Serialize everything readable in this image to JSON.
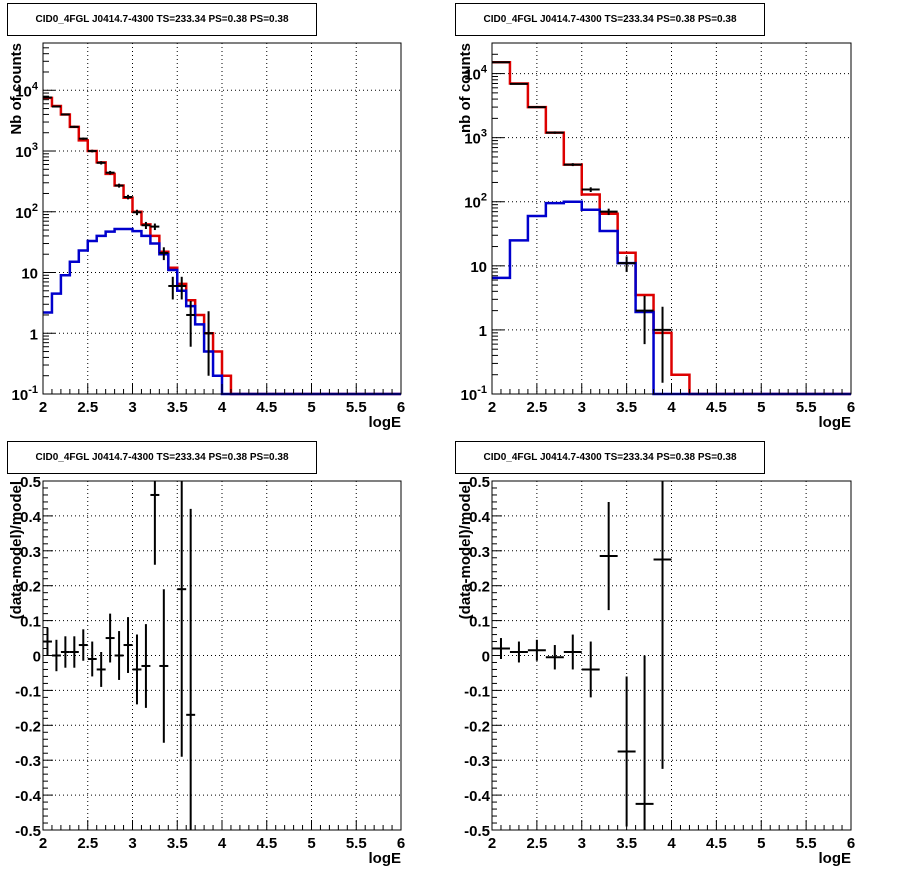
{
  "chart_data": [
    {
      "type": "step-histogram",
      "title": "CID0_4FGL J0414.7-4300 TS=233.34 PS=0.38 PS=0.38",
      "xlabel": "logE",
      "ylabel": "Nb of counts",
      "xlim": [
        2,
        6
      ],
      "ylim": [
        0.1,
        60000
      ],
      "yscale": "log",
      "grid": true,
      "xticks": [
        "2",
        "2.5",
        "3",
        "3.5",
        "4",
        "4.5",
        "5",
        "5.5",
        "6"
      ],
      "yticks": [
        "10^-1",
        "1",
        "10",
        "10^2",
        "10^3",
        "10^4"
      ],
      "bin_edges": [
        2.0,
        2.1,
        2.2,
        2.3,
        2.4,
        2.5,
        2.6,
        2.7,
        2.8,
        2.9,
        3.0,
        3.1,
        3.2,
        3.3,
        3.4,
        3.5,
        3.6,
        3.7,
        3.8,
        3.9,
        4.0,
        4.1,
        4.2,
        4.3,
        4.4,
        4.5,
        4.6,
        4.7,
        4.8,
        4.9,
        5.0,
        5.1,
        5.2,
        5.3,
        5.4,
        5.5,
        5.6,
        5.7,
        5.8,
        5.9,
        6.0
      ],
      "series": [
        {
          "color": "#dd0000",
          "values": [
            7500,
            5500,
            4000,
            2500,
            1500,
            1000,
            650,
            420,
            270,
            170,
            100,
            62,
            40,
            22,
            12,
            6.5,
            3.5,
            2.0,
            1.0,
            0.5,
            0.2,
            0.1,
            0.1,
            0.1,
            0.1,
            0.1,
            0.1,
            0.1,
            0.1,
            0.1,
            0.1,
            0.1,
            0.1,
            0.1,
            0.1,
            0.1,
            0.1,
            0.1,
            0.1,
            0.1
          ]
        },
        {
          "color": "#0000cc",
          "values": [
            2.2,
            4.5,
            9,
            15,
            23,
            33,
            40,
            47,
            52,
            52,
            48,
            40,
            30,
            20,
            11,
            5,
            2.8,
            1.4,
            0.5,
            0.2,
            0.1,
            0.1,
            0.1,
            0.1,
            0.1,
            0.1,
            0.1,
            0.1,
            0.1,
            0.1,
            0.1,
            0.1,
            0.1,
            0.1,
            0.1,
            0.1,
            0.1,
            0.1,
            0.1,
            0.1
          ]
        }
      ],
      "points": [
        {
          "x": 2.05,
          "y": 7600,
          "lo": 7400,
          "hi": 7800
        },
        {
          "x": 2.15,
          "y": 5400,
          "lo": 5250,
          "hi": 5550
        },
        {
          "x": 2.25,
          "y": 4000,
          "lo": 3880,
          "hi": 4120
        },
        {
          "x": 2.35,
          "y": 2500,
          "lo": 2400,
          "hi": 2600
        },
        {
          "x": 2.45,
          "y": 1600,
          "lo": 1530,
          "hi": 1670
        },
        {
          "x": 2.55,
          "y": 1000,
          "lo": 950,
          "hi": 1050
        },
        {
          "x": 2.65,
          "y": 640,
          "lo": 600,
          "hi": 680
        },
        {
          "x": 2.75,
          "y": 440,
          "lo": 410,
          "hi": 470
        },
        {
          "x": 2.85,
          "y": 270,
          "lo": 250,
          "hi": 290
        },
        {
          "x": 2.95,
          "y": 175,
          "lo": 160,
          "hi": 190
        },
        {
          "x": 3.05,
          "y": 98,
          "lo": 88,
          "hi": 108
        },
        {
          "x": 3.15,
          "y": 60,
          "lo": 52,
          "hi": 68
        },
        {
          "x": 3.25,
          "y": 57,
          "lo": 50,
          "hi": 64
        },
        {
          "x": 3.35,
          "y": 21,
          "lo": 16,
          "hi": 26
        },
        {
          "x": 3.45,
          "y": 6,
          "lo": 3.6,
          "hi": 8.5
        },
        {
          "x": 3.55,
          "y": 6,
          "lo": 3.6,
          "hi": 8.5
        },
        {
          "x": 3.65,
          "y": 2,
          "lo": 0.6,
          "hi": 3.4
        },
        {
          "x": 3.85,
          "y": 1,
          "lo": 0.2,
          "hi": 2.3
        }
      ]
    },
    {
      "type": "step-histogram",
      "title": "CID0_4FGL J0414.7-4300 TS=233.34 PS=0.38 PS=0.38",
      "xlabel": "logE",
      "ylabel": "nb of counts",
      "xlim": [
        2,
        6
      ],
      "ylim": [
        0.1,
        30000
      ],
      "yscale": "log",
      "grid": true,
      "xticks": [
        "2",
        "2.5",
        "3",
        "3.5",
        "4",
        "4.5",
        "5",
        "5.5",
        "6"
      ],
      "yticks": [
        "10^-1",
        "1",
        "10",
        "10^2",
        "10^3",
        "10^4"
      ],
      "bin_edges": [
        2.0,
        2.2,
        2.4,
        2.6,
        2.8,
        3.0,
        3.2,
        3.4,
        3.6,
        3.8,
        4.0,
        4.2,
        4.4,
        4.6,
        4.8,
        5.0,
        5.2,
        5.4,
        5.6,
        5.8,
        6.0
      ],
      "series": [
        {
          "color": "#dd0000",
          "values": [
            15000,
            7000,
            3000,
            1200,
            380,
            130,
            65,
            16,
            3.5,
            0.9,
            0.2,
            0.1,
            0.1,
            0.1,
            0.1,
            0.1,
            0.1,
            0.1,
            0.1,
            0.1
          ]
        },
        {
          "color": "#0000cc",
          "values": [
            6.5,
            25,
            60,
            95,
            100,
            75,
            35,
            11,
            1.9,
            0.1,
            0.1,
            0.1,
            0.1,
            0.1,
            0.1,
            0.1,
            0.1,
            0.1,
            0.1,
            0.1
          ]
        }
      ],
      "points": [
        {
          "x": 2.1,
          "y": 15000,
          "lo": 14800,
          "hi": 15200
        },
        {
          "x": 2.3,
          "y": 6900,
          "lo": 6750,
          "hi": 7050
        },
        {
          "x": 2.5,
          "y": 3000,
          "lo": 2900,
          "hi": 3100
        },
        {
          "x": 2.7,
          "y": 1200,
          "lo": 1150,
          "hi": 1250
        },
        {
          "x": 2.9,
          "y": 380,
          "lo": 360,
          "hi": 400
        },
        {
          "x": 3.1,
          "y": 155,
          "lo": 142,
          "hi": 168
        },
        {
          "x": 3.3,
          "y": 70,
          "lo": 62,
          "hi": 78
        },
        {
          "x": 3.5,
          "y": 11,
          "lo": 8,
          "hi": 14
        },
        {
          "x": 3.7,
          "y": 2,
          "lo": 0.6,
          "hi": 3.4
        },
        {
          "x": 3.9,
          "y": 1,
          "lo": 0.15,
          "hi": 2.3
        }
      ]
    },
    {
      "type": "errorbar",
      "title": "CID0_4FGL J0414.7-4300 TS=233.34 PS=0.38 PS=0.38",
      "xlabel": "logE",
      "ylabel": "(data-model)/model",
      "xlim": [
        2,
        6
      ],
      "ylim": [
        -0.5,
        0.5
      ],
      "grid": true,
      "xticks": [
        "2",
        "2.5",
        "3",
        "3.5",
        "4",
        "4.5",
        "5",
        "5.5",
        "6"
      ],
      "yticks": [
        "-0.5",
        "-0.4",
        "-0.3",
        "-0.2",
        "-0.1",
        "0",
        "0.1",
        "0.2",
        "0.3",
        "0.4",
        "0.5"
      ],
      "points": [
        {
          "x": 2.05,
          "y": 0.04,
          "err": 0.04
        },
        {
          "x": 2.15,
          "y": 0.0,
          "err": 0.045
        },
        {
          "x": 2.25,
          "y": 0.01,
          "err": 0.045
        },
        {
          "x": 2.35,
          "y": 0.01,
          "err": 0.045
        },
        {
          "x": 2.45,
          "y": 0.03,
          "err": 0.045
        },
        {
          "x": 2.55,
          "y": -0.01,
          "err": 0.05
        },
        {
          "x": 2.65,
          "y": -0.04,
          "err": 0.05
        },
        {
          "x": 2.75,
          "y": 0.05,
          "err": 0.07
        },
        {
          "x": 2.85,
          "y": 0.0,
          "err": 0.07
        },
        {
          "x": 2.95,
          "y": 0.03,
          "err": 0.08
        },
        {
          "x": 3.05,
          "y": -0.04,
          "err": 0.1
        },
        {
          "x": 3.15,
          "y": -0.03,
          "err": 0.12
        },
        {
          "x": 3.25,
          "y": 0.46,
          "err": 0.2
        },
        {
          "x": 3.35,
          "y": -0.03,
          "err": 0.22
        },
        {
          "x": 3.55,
          "y": 0.19,
          "err": 0.48
        },
        {
          "x": 3.65,
          "y": -0.17,
          "err": 0.59
        }
      ]
    },
    {
      "type": "errorbar",
      "title": "CID0_4FGL J0414.7-4300 TS=233.34 PS=0.38 PS=0.38",
      "xlabel": "logE",
      "ylabel": "(data-model)/model",
      "xlim": [
        2,
        6
      ],
      "ylim": [
        -0.5,
        0.5
      ],
      "grid": true,
      "xticks": [
        "2",
        "2.5",
        "3",
        "3.5",
        "4",
        "4.5",
        "5",
        "5.5",
        "6"
      ],
      "yticks": [
        "-0.5",
        "-0.4",
        "-0.3",
        "-0.2",
        "-0.1",
        "0",
        "0.1",
        "0.2",
        "0.3",
        "0.4",
        "0.5"
      ],
      "points": [
        {
          "x": 2.1,
          "y": 0.02,
          "err": 0.03
        },
        {
          "x": 2.3,
          "y": 0.01,
          "err": 0.03
        },
        {
          "x": 2.5,
          "y": 0.015,
          "err": 0.03
        },
        {
          "x": 2.7,
          "y": -0.005,
          "err": 0.035
        },
        {
          "x": 2.9,
          "y": 0.01,
          "err": 0.05
        },
        {
          "x": 3.1,
          "y": -0.04,
          "err": 0.08
        },
        {
          "x": 3.3,
          "y": 0.285,
          "err": 0.155
        },
        {
          "x": 3.5,
          "y": -0.275,
          "err": 0.215
        },
        {
          "x": 3.7,
          "y": -0.425,
          "err": 0.425
        },
        {
          "x": 3.9,
          "y": 0.275,
          "err": 0.6
        }
      ]
    }
  ]
}
